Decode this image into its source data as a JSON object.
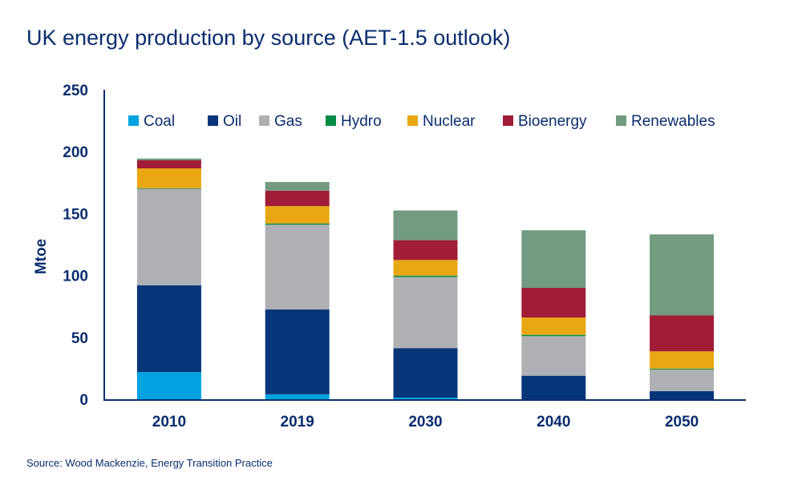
{
  "chart_data": {
    "type": "bar",
    "stacked": true,
    "title": "UK energy production by source (AET-1.5 outlook)",
    "source": "Source: Wood Mackenzie, Energy Transition Practice",
    "xlabel": "",
    "ylabel": "Mtoe",
    "ylim": [
      0,
      250
    ],
    "yticks": [
      0,
      50,
      100,
      150,
      200,
      250
    ],
    "grid": false,
    "legend_position": "top",
    "categories": [
      "2010",
      "2019",
      "2030",
      "2040",
      "2050"
    ],
    "series": [
      {
        "name": "Coal",
        "color": "#00a3e0",
        "values": [
          22,
          4,
          1.3,
          0,
          0
        ]
      },
      {
        "name": "Oil",
        "color": "#06357a",
        "values": [
          70,
          68.5,
          40,
          19,
          6.5
        ]
      },
      {
        "name": "Gas",
        "color": "#afb0b3",
        "values": [
          78,
          68.5,
          57.5,
          32,
          17.5
        ]
      },
      {
        "name": "Hydro",
        "color": "#008c45",
        "values": [
          0.5,
          1,
          1,
          1,
          0.7
        ]
      },
      {
        "name": "Nuclear",
        "color": "#e9a713",
        "values": [
          16,
          14,
          12.7,
          14,
          14
        ]
      },
      {
        "name": "Bioenergy",
        "color": "#a01c37",
        "values": [
          6.5,
          12.5,
          16,
          24,
          29
        ]
      },
      {
        "name": "Renewables",
        "color": "#729b7f",
        "values": [
          1.5,
          7,
          24,
          46.5,
          65.5
        ]
      }
    ]
  }
}
